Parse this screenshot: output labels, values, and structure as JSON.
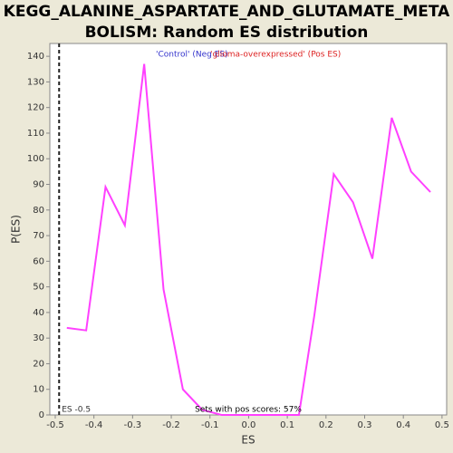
{
  "chart_data": {
    "type": "line",
    "title_lines": [
      "KEGG_ALANINE_ASPARTATE_AND_GLUTAMATE_META",
      "BOLISM: Random ES distribution"
    ],
    "x_label": "ES",
    "y_label": "P(ES)",
    "legend": [
      {
        "name": "'Control' (Neg ES)",
        "color": "#3333cc"
      },
      {
        "name": "'glioma-overexpressed' (Pos ES)",
        "color": "#dd2222"
      }
    ],
    "annotation": "Sets with pos scores: 57%",
    "observed_es": {
      "value": -0.49,
      "label": "ES -0.5"
    },
    "x": [
      -0.47,
      -0.42,
      -0.37,
      -0.32,
      -0.27,
      -0.22,
      -0.17,
      -0.12,
      -0.07,
      -0.02,
      0.03,
      0.08,
      0.13,
      0.17,
      0.22,
      0.27,
      0.32,
      0.37,
      0.42,
      0.47
    ],
    "series": [
      {
        "name": "P(ES)",
        "color": "#ff40ff",
        "values": [
          34,
          33,
          89,
          74,
          137,
          49,
          10,
          2,
          0,
          0,
          0,
          0,
          0,
          39,
          94,
          83,
          61,
          116,
          95,
          87
        ]
      }
    ],
    "xlim": [
      -0.514,
      0.512
    ],
    "ylim": [
      0,
      145
    ],
    "xticks": [
      -0.5,
      -0.4,
      -0.3,
      -0.2,
      -0.1,
      {
        "value": 0,
        "label": "0.0"
      },
      0.1,
      0.2,
      0.3,
      0.4,
      0.5
    ],
    "yticks": [
      0,
      10,
      20,
      30,
      40,
      50,
      60,
      70,
      80,
      90,
      100,
      110,
      120,
      130,
      140
    ]
  }
}
